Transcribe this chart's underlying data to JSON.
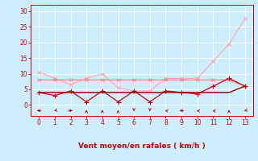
{
  "x": [
    0,
    1,
    2,
    3,
    4,
    5,
    6,
    7,
    8,
    9,
    10,
    11,
    12,
    13
  ],
  "line1_y": [
    10.5,
    8.5,
    6.5,
    8.5,
    10.0,
    5.5,
    4.5,
    4.5,
    8.5,
    8.5,
    8.5,
    14.0,
    19.5,
    27.5
  ],
  "line2_y": [
    8.0,
    8.0,
    8.0,
    8.0,
    8.0,
    8.0,
    8.0,
    8.0,
    8.0,
    8.0,
    8.0,
    8.0,
    8.0,
    6.0
  ],
  "line3_y": [
    4.0,
    3.0,
    4.5,
    1.0,
    4.5,
    1.0,
    4.5,
    1.0,
    4.5,
    4.0,
    3.5,
    6.0,
    8.5,
    6.0
  ],
  "line4_y": [
    4.0,
    4.0,
    4.0,
    4.0,
    4.0,
    4.0,
    4.0,
    4.0,
    4.0,
    4.0,
    4.0,
    4.0,
    4.0,
    6.0
  ],
  "line1_color": "#ffaaaa",
  "line2_color": "#ff8888",
  "line3_color": "#cc0000",
  "line4_color": "#880000",
  "bg_color": "#cceeff",
  "grid_color": "#ffffff",
  "xlabel": "Vent moyen/en rafales ( km/h )",
  "xlabel_color": "#cc0000",
  "tick_color": "#cc0000",
  "ylim": [
    -3.5,
    32
  ],
  "xlim": [
    -0.5,
    13.5
  ],
  "yticks": [
    0,
    5,
    10,
    15,
    20,
    25,
    30
  ],
  "xticks": [
    0,
    1,
    2,
    3,
    4,
    5,
    6,
    7,
    8,
    9,
    10,
    11,
    12,
    13
  ],
  "arrow_angles": [
    270,
    315,
    90,
    180,
    180,
    180,
    0,
    0,
    225,
    270,
    225,
    225,
    180,
    315
  ]
}
